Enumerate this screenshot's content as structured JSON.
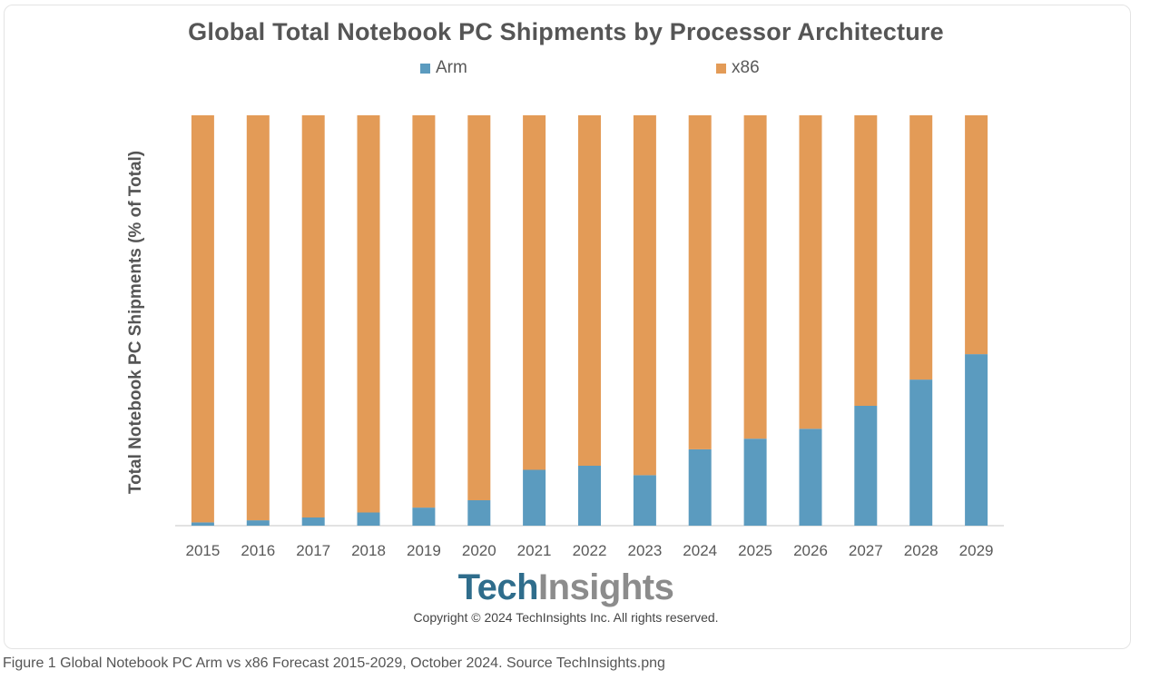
{
  "brand_logo": {
    "part1": "Tech",
    "part2": "Insights"
  },
  "copyright": "Copyright © 2024 TechInsights Inc.  All rights reserved.",
  "caption": "Figure 1 Global Notebook PC Arm vs x86 Forecast 2015-2029, October 2024. Source TechInsights.png",
  "chart_data": {
    "type": "bar",
    "stacked": true,
    "title": "Global Total Notebook PC Shipments by Processor Architecture",
    "xlabel": "",
    "ylabel": "Total Notebook PC Shipments (% of Total)",
    "ylim": [
      0,
      100
    ],
    "y_ticks_shown": false,
    "grid": false,
    "legend_position": "top",
    "categories": [
      "2015",
      "2016",
      "2017",
      "2018",
      "2019",
      "2020",
      "2021",
      "2022",
      "2023",
      "2024",
      "2025",
      "2026",
      "2027",
      "2028",
      "2029"
    ],
    "series": [
      {
        "name": "Arm",
        "color": "#5b9bbf",
        "values": [
          0.8,
          1.3,
          2.0,
          3.2,
          4.4,
          6.2,
          13.6,
          14.6,
          12.3,
          18.6,
          21.2,
          23.6,
          29.2,
          35.6,
          41.8
        ]
      },
      {
        "name": "x86",
        "color": "#e39b57",
        "values": [
          99.2,
          98.7,
          98.0,
          96.8,
          95.6,
          93.8,
          86.4,
          85.4,
          87.7,
          81.4,
          78.8,
          76.4,
          70.8,
          64.4,
          58.2
        ]
      }
    ]
  }
}
